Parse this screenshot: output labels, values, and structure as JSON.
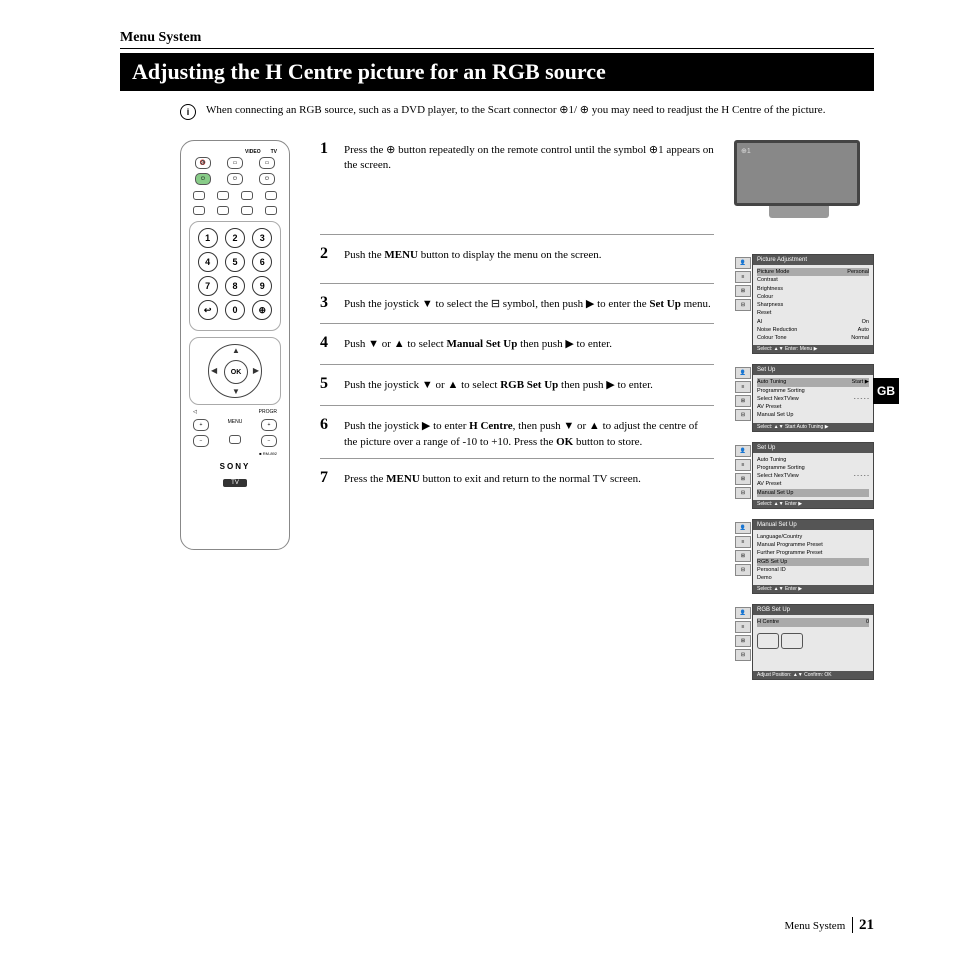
{
  "section_header": "Menu System",
  "title": "Adjusting the H Centre picture for an RGB source",
  "intro": "When connecting an RGB source, such as a DVD player, to the Scart connector ⊕1/ ⊕ you may need to readjust the H Centre of the picture.",
  "gb_label": "GB",
  "remote": {
    "video_label": "VIDEO",
    "tv_label": "TV",
    "ok_label": "OK",
    "brand": "SONY",
    "badge": "TV",
    "model": "RM-892",
    "menu_label": "MENU",
    "progr_label": "PROGR",
    "numpad": [
      [
        "1",
        "2",
        "3"
      ],
      [
        "4",
        "5",
        "6"
      ],
      [
        "7",
        "8",
        "9"
      ],
      [
        "↩",
        "0",
        "⊕"
      ]
    ]
  },
  "steps": [
    {
      "n": "1",
      "text": "Press the ⊕ button repeatedly on the remote control until the symbol ⊕1 appears on the screen."
    },
    {
      "n": "2",
      "text": "Push the <b>MENU</b> button to display the menu on the screen."
    },
    {
      "n": "3",
      "text": "Push the joystick ▼ to select the ⊟ symbol, then push ▶ to enter the <b>Set Up</b> menu."
    },
    {
      "n": "4",
      "text": "Push ▼ or ▲ to select <b>Manual Set Up</b> then push ▶ to enter."
    },
    {
      "n": "5",
      "text": "Push the joystick ▼ or ▲ to select <b>RGB Set Up</b> then push ▶ to enter."
    },
    {
      "n": "6",
      "text": "Push the joystick ▶ to enter <b>H Centre</b>, then push ▼ or ▲ to adjust the centre of the picture over a range of -10 to +10. Press the <b>OK</b> button to store."
    },
    {
      "n": "7",
      "text": "Press the <b>MENU</b> button to exit and return to the normal TV screen."
    }
  ],
  "tv_screen_label": "⊕1",
  "osd": [
    {
      "title": "Picture Adjustment",
      "rows": [
        {
          "l": "Picture Mode",
          "r": "Personal",
          "hl": true
        },
        {
          "l": "Contrast",
          "r": ""
        },
        {
          "l": "Brightness",
          "r": ""
        },
        {
          "l": "Colour",
          "r": ""
        },
        {
          "l": "Sharpness",
          "r": ""
        },
        {
          "l": "Reset",
          "r": ""
        },
        {
          "l": "AI",
          "r": "On"
        },
        {
          "l": "Noise Reduction",
          "r": "Auto"
        },
        {
          "l": "Colour Tone",
          "r": "Normal"
        }
      ],
      "footer": "Select: ▲▼  Enter: Menu ▶"
    },
    {
      "title": "Set Up",
      "rows": [
        {
          "l": "Auto Tuning",
          "r": "Start ▶",
          "hl": true
        },
        {
          "l": "Programme Sorting",
          "r": ""
        },
        {
          "l": "Select NexTView",
          "r": "- - - - -"
        },
        {
          "l": "AV Preset",
          "r": ""
        },
        {
          "l": "Manual Set Up",
          "r": ""
        }
      ],
      "footer": "Select: ▲▼  Start Auto Tuning ▶"
    },
    {
      "title": "Set Up",
      "rows": [
        {
          "l": "Auto Tuning",
          "r": ""
        },
        {
          "l": "Programme Sorting",
          "r": ""
        },
        {
          "l": "Select NexTView",
          "r": "- - - - -"
        },
        {
          "l": "AV Preset",
          "r": ""
        },
        {
          "l": "Manual Set Up",
          "r": "",
          "hl": true
        }
      ],
      "footer": "Select: ▲▼  Enter ▶"
    },
    {
      "title": "Manual Set Up",
      "rows": [
        {
          "l": "Language/Country",
          "r": ""
        },
        {
          "l": "Manual Programme Preset",
          "r": ""
        },
        {
          "l": "Further Programme Preset",
          "r": ""
        },
        {
          "l": "RGB Set Up",
          "r": "",
          "hl": true
        },
        {
          "l": "Personal ID",
          "r": ""
        },
        {
          "l": "Demo",
          "r": ""
        }
      ],
      "footer": "Select: ▲▼  Enter ▶"
    },
    {
      "title": "RGB Set Up",
      "rows": [
        {
          "l": "H Centre",
          "r": "0",
          "hl": true
        }
      ],
      "extra_graphic": true,
      "footer": "Adjust Position: ▲▼  Confirm: OK"
    }
  ],
  "footer_text": "Menu System",
  "footer_page": "21"
}
